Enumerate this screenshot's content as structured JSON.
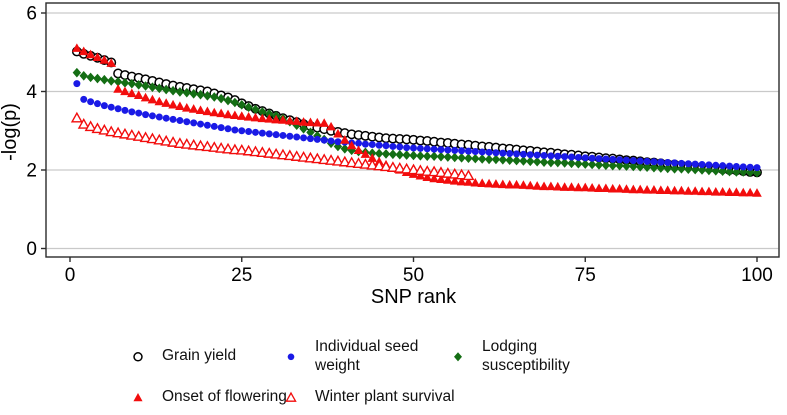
{
  "chart_data": {
    "type": "scatter",
    "title": "",
    "xlabel": "SNP rank",
    "ylabel": "-log(p)",
    "xlim": [
      -3,
      104
    ],
    "ylim": [
      0,
      6.2
    ],
    "xticks": [
      0,
      25,
      50,
      75,
      100
    ],
    "yticks": [
      0,
      2,
      4,
      6
    ],
    "grid": "horizontal major gridlines only",
    "legend_position": "bottom",
    "x_rule": "x = SNP rank = index + 1 for every series",
    "colors": {
      "grid": "#c9c9c9",
      "frame": "#2b2b2b",
      "text": "#000000",
      "background": "#ffffff"
    },
    "draw_order": [
      0,
      2,
      1,
      3,
      4
    ],
    "series": [
      {
        "name": "Grain yield",
        "marker": "open-circle",
        "color": "#000000",
        "y": [
          5.02,
          4.96,
          4.91,
          4.86,
          4.8,
          4.74,
          4.46,
          4.42,
          4.38,
          4.35,
          4.31,
          4.27,
          4.23,
          4.19,
          4.15,
          4.12,
          4.09,
          4.06,
          4.03,
          4.0,
          3.95,
          3.9,
          3.85,
          3.78,
          3.7,
          3.63,
          3.56,
          3.5,
          3.44,
          3.38,
          3.32,
          3.27,
          3.22,
          3.17,
          3.12,
          3.08,
          3.04,
          3.0,
          2.97,
          2.94,
          2.91,
          2.89,
          2.87,
          2.85,
          2.83,
          2.81,
          2.8,
          2.79,
          2.78,
          2.77,
          2.75,
          2.74,
          2.72,
          2.7,
          2.69,
          2.67,
          2.65,
          2.64,
          2.62,
          2.6,
          2.59,
          2.57,
          2.55,
          2.54,
          2.52,
          2.5,
          2.49,
          2.47,
          2.45,
          2.44,
          2.42,
          2.4,
          2.39,
          2.37,
          2.35,
          2.34,
          2.32,
          2.3,
          2.29,
          2.27,
          2.25,
          2.24,
          2.22,
          2.2,
          2.19,
          2.17,
          2.15,
          2.14,
          2.12,
          2.1,
          2.09,
          2.07,
          2.05,
          2.04,
          2.02,
          2.0,
          1.99,
          1.97,
          1.95,
          1.94
        ]
      },
      {
        "name": "Individual seed weight",
        "marker": "filled-circle",
        "color": "#1a1ae6",
        "y": [
          4.2,
          3.8,
          3.74,
          3.69,
          3.64,
          3.6,
          3.56,
          3.52,
          3.48,
          3.45,
          3.41,
          3.38,
          3.35,
          3.32,
          3.29,
          3.26,
          3.23,
          3.2,
          3.17,
          3.14,
          3.11,
          3.08,
          3.05,
          3.02,
          3.0,
          2.98,
          2.96,
          2.94,
          2.92,
          2.9,
          2.88,
          2.86,
          2.84,
          2.82,
          2.8,
          2.78,
          2.76,
          2.74,
          2.72,
          2.71,
          2.69,
          2.68,
          2.66,
          2.65,
          2.63,
          2.62,
          2.6,
          2.59,
          2.57,
          2.56,
          2.55,
          2.54,
          2.53,
          2.52,
          2.51,
          2.5,
          2.49,
          2.48,
          2.47,
          2.46,
          2.45,
          2.44,
          2.43,
          2.42,
          2.41,
          2.4,
          2.39,
          2.38,
          2.37,
          2.36,
          2.35,
          2.34,
          2.33,
          2.32,
          2.31,
          2.3,
          2.29,
          2.28,
          2.27,
          2.26,
          2.25,
          2.24,
          2.23,
          2.22,
          2.21,
          2.2,
          2.19,
          2.18,
          2.17,
          2.16,
          2.15,
          2.14,
          2.13,
          2.12,
          2.11,
          2.1,
          2.09,
          2.08,
          2.07,
          2.06
        ]
      },
      {
        "name": "Lodging susceptibility",
        "marker": "filled-diamond",
        "color": "#146e14",
        "y": [
          4.48,
          4.4,
          4.36,
          4.33,
          4.3,
          4.27,
          4.25,
          4.22,
          4.2,
          4.17,
          4.14,
          4.11,
          4.08,
          4.05,
          4.02,
          3.99,
          3.97,
          3.94,
          3.92,
          3.89,
          3.86,
          3.82,
          3.77,
          3.72,
          3.66,
          3.6,
          3.54,
          3.48,
          3.43,
          3.38,
          3.31,
          3.23,
          3.14,
          3.05,
          2.96,
          2.87,
          2.78,
          2.68,
          2.6,
          2.54,
          2.5,
          2.47,
          2.45,
          2.43,
          2.42,
          2.41,
          2.4,
          2.39,
          2.38,
          2.37,
          2.36,
          2.35,
          2.35,
          2.34,
          2.33,
          2.32,
          2.31,
          2.3,
          2.29,
          2.28,
          2.27,
          2.27,
          2.26,
          2.25,
          2.24,
          2.23,
          2.22,
          2.21,
          2.2,
          2.19,
          2.19,
          2.18,
          2.17,
          2.16,
          2.15,
          2.14,
          2.13,
          2.12,
          2.11,
          2.11,
          2.1,
          2.09,
          2.08,
          2.07,
          2.06,
          2.05,
          2.04,
          2.03,
          2.03,
          2.02,
          2.01,
          2.0,
          1.99,
          1.98,
          1.97,
          1.96,
          1.95,
          1.95,
          1.94,
          1.93
        ]
      },
      {
        "name": "Onset of flowering",
        "marker": "filled-triangle",
        "color": "#f20d0d",
        "y": [
          5.1,
          5.02,
          4.94,
          4.87,
          4.8,
          4.72,
          4.06,
          4.0,
          3.95,
          3.9,
          3.84,
          3.79,
          3.74,
          3.7,
          3.66,
          3.62,
          3.58,
          3.55,
          3.52,
          3.49,
          3.46,
          3.44,
          3.41,
          3.39,
          3.37,
          3.35,
          3.33,
          3.31,
          3.3,
          3.28,
          3.27,
          3.25,
          3.24,
          3.22,
          3.21,
          3.2,
          3.19,
          3.1,
          2.92,
          2.76,
          2.62,
          2.5,
          2.4,
          2.3,
          2.21,
          2.13,
          2.06,
          2.0,
          1.94,
          1.89,
          1.85,
          1.81,
          1.78,
          1.76,
          1.74,
          1.72,
          1.7,
          1.69,
          1.67,
          1.66,
          1.65,
          1.64,
          1.63,
          1.62,
          1.62,
          1.61,
          1.6,
          1.59,
          1.58,
          1.58,
          1.57,
          1.56,
          1.56,
          1.55,
          1.55,
          1.54,
          1.53,
          1.53,
          1.52,
          1.52,
          1.51,
          1.5,
          1.5,
          1.49,
          1.49,
          1.48,
          1.48,
          1.47,
          1.47,
          1.46,
          1.46,
          1.45,
          1.45,
          1.44,
          1.44,
          1.43,
          1.43,
          1.42,
          1.42,
          1.41
        ]
      },
      {
        "name": "Winter plant survival",
        "marker": "open-triangle",
        "color": "#f20d0d",
        "y": [
          3.32,
          3.16,
          3.1,
          3.05,
          3.01,
          2.97,
          2.94,
          2.91,
          2.88,
          2.85,
          2.82,
          2.79,
          2.76,
          2.73,
          2.7,
          2.67,
          2.65,
          2.63,
          2.61,
          2.59,
          2.57,
          2.55,
          2.53,
          2.51,
          2.5,
          2.48,
          2.46,
          2.44,
          2.42,
          2.4,
          2.38,
          2.36,
          2.34,
          2.32,
          2.3,
          2.28,
          2.26,
          2.24,
          2.22,
          2.2,
          2.18,
          2.16,
          2.14,
          2.12,
          2.1,
          2.08,
          2.06,
          2.04,
          2.02,
          2.0,
          1.98,
          1.96,
          1.95,
          1.93,
          1.91,
          1.89,
          1.87,
          1.85
        ]
      }
    ]
  },
  "axes": {
    "x_title": "SNP rank",
    "y_title": "-log(p)",
    "x_tick_labels": [
      "0",
      "25",
      "50",
      "75",
      "100"
    ],
    "y_tick_labels": [
      "0",
      "2",
      "4",
      "6"
    ]
  },
  "legend": {
    "items": [
      {
        "label": "Grain yield",
        "series": 0
      },
      {
        "label": "Individual seed\nweight",
        "series": 1
      },
      {
        "label": "Lodging\nsusceptibility",
        "series": 2
      },
      {
        "label": "Onset of flowering",
        "series": 3
      },
      {
        "label": "Winter plant survival",
        "series": 4
      }
    ]
  }
}
